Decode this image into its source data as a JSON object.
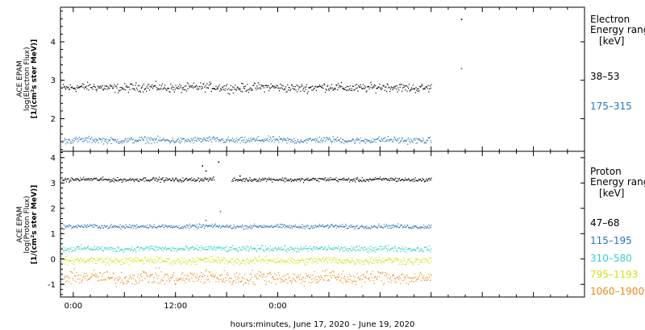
{
  "chart_data": [
    {
      "type": "scatter",
      "panel": "electron",
      "ylabel_lines": [
        "ACE EPAM",
        "log(Electron Flux)",
        "[1/(cm²s ster MeV)]"
      ],
      "ylim": [
        1.15,
        4.9
      ],
      "yticks": [
        2,
        3,
        4
      ],
      "legend_title": [
        "Electron",
        "Energy ranges",
        "[keV]"
      ],
      "series": [
        {
          "name": "38–53",
          "color": "#000000",
          "level": 2.82,
          "scatter": 0.07,
          "gap": null,
          "outliers": [
            {
              "x": 45.5,
              "y": 4.6
            }
          ]
        },
        {
          "name": "175–315",
          "color": "#1f77c4",
          "level": 1.45,
          "scatter": 0.05,
          "gap": null,
          "outliers": [
            {
              "x": 45.5,
              "y": 3.32
            }
          ]
        }
      ]
    },
    {
      "type": "scatter",
      "panel": "proton",
      "ylabel_lines": [
        "ACE EPAM",
        "log(Proton Flux)",
        "[1/(cm²s ster MeV)]"
      ],
      "ylim": [
        -1.5,
        4.25
      ],
      "yticks": [
        -1,
        0,
        1,
        2,
        3,
        4
      ],
      "legend_title": [
        "Proton",
        "Energy ranges",
        "[keV]"
      ],
      "series": [
        {
          "name": "47–68",
          "color": "#000000",
          "level": 3.15,
          "scatter": 0.05,
          "gap": [
            16.5,
            18.5
          ],
          "outliers": [
            {
              "x": 15.1,
              "y": 3.7
            },
            {
              "x": 15.5,
              "y": 3.5
            },
            {
              "x": 17.0,
              "y": 3.85
            },
            {
              "x": 19.5,
              "y": 3.3
            }
          ]
        },
        {
          "name": "115–195",
          "color": "#1f77c4",
          "level": 1.3,
          "scatter": 0.05,
          "gap": null,
          "outliers": [
            {
              "x": 15.5,
              "y": 1.55
            },
            {
              "x": 17.2,
              "y": 1.9
            }
          ]
        },
        {
          "name": "310–580",
          "color": "#2bd2cf",
          "level": 0.42,
          "scatter": 0.07,
          "gap": null,
          "outliers": []
        },
        {
          "name": "795–1193",
          "color": "#d7e000",
          "level": -0.05,
          "scatter": 0.09,
          "gap": null,
          "outliers": []
        },
        {
          "name": "1060–1900",
          "color": "#ee8a10",
          "level": -0.72,
          "scatter": 0.17,
          "gap": null,
          "outliers": []
        }
      ]
    }
  ],
  "time_axis": {
    "xlim_hours": [
      -1.5,
      60
    ],
    "data_end_hours": 42,
    "tick_labels": [
      {
        "hour": 0,
        "label": "0:00"
      },
      {
        "hour": 12,
        "label": "12:00"
      },
      {
        "hour": 24,
        "label": "0:00"
      }
    ],
    "xlabel": "hours:minutes, June 17, 2020 – June 19, 2020"
  }
}
